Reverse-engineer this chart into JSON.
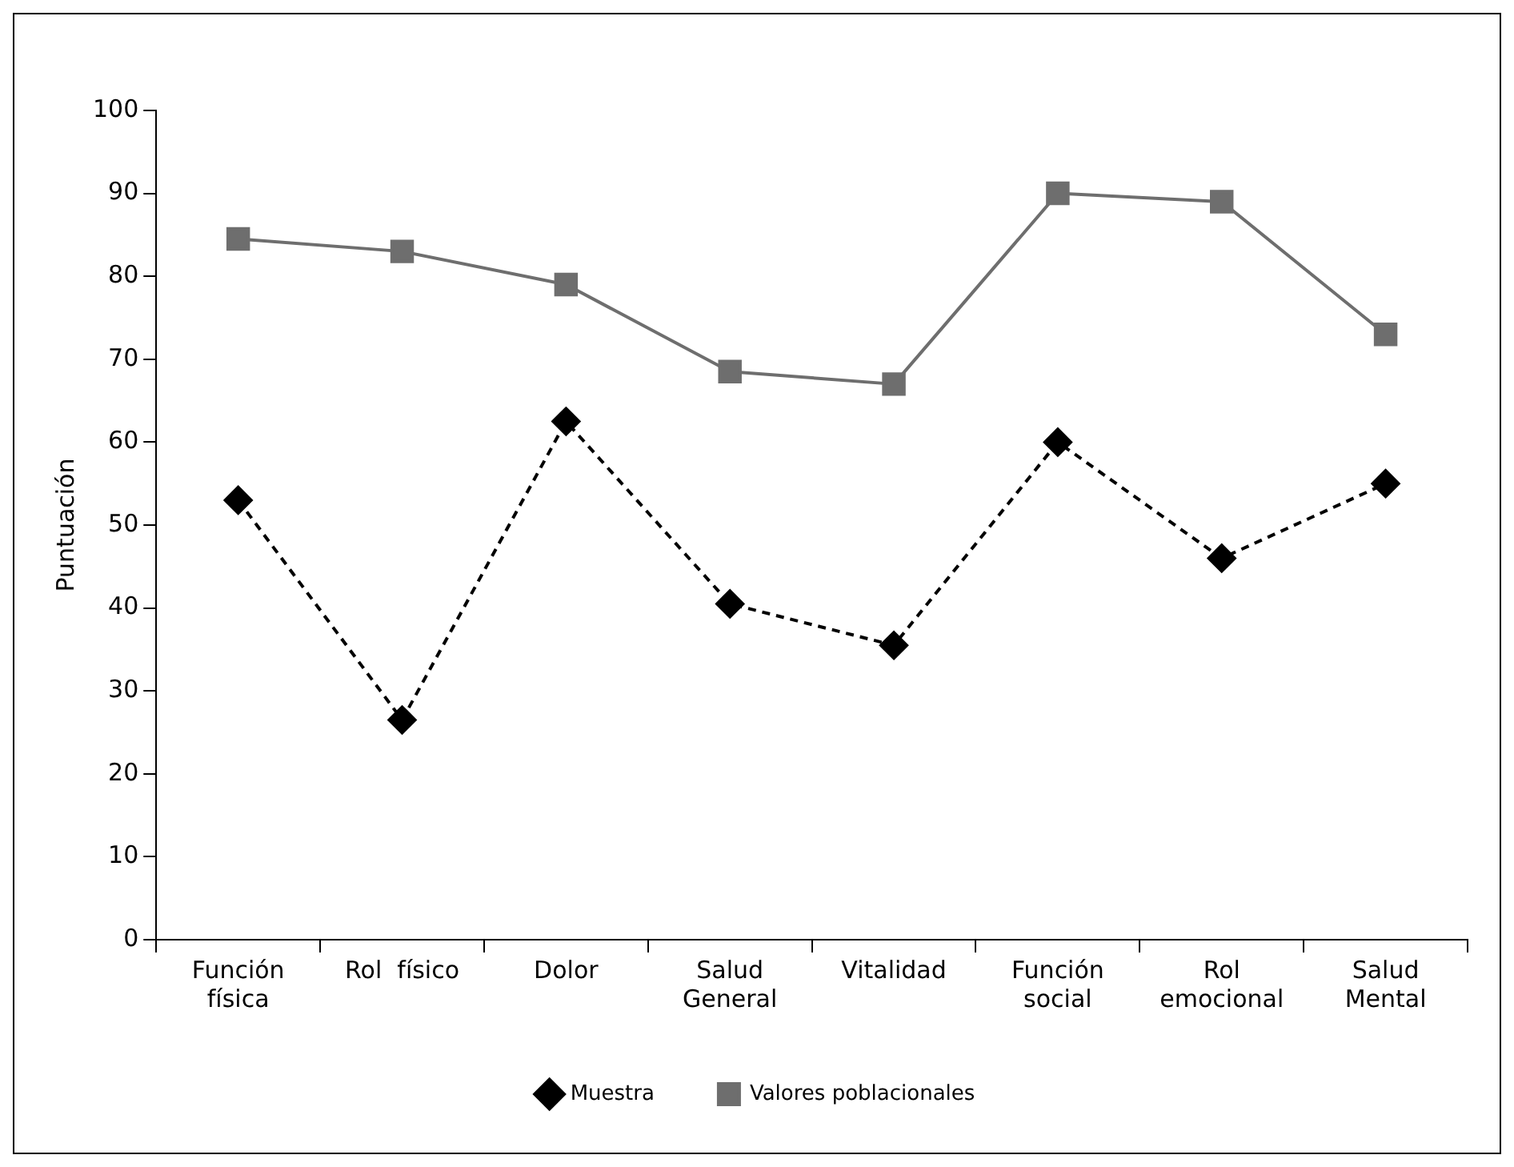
{
  "chart_data": {
    "type": "line",
    "ylabel": "Puntuación",
    "categories": [
      "Función\nfísica",
      "Rol  físico",
      "Dolor",
      "Salud\nGeneral",
      "Vitalidad",
      "Función\nsocial",
      "Rol\nemocional",
      "Salud\nMental"
    ],
    "series": [
      {
        "name": "Muestra",
        "color": "#000000",
        "marker": "diamond",
        "line_style": "dashed",
        "values": [
          53,
          26.5,
          62.5,
          40.5,
          35.5,
          60,
          46,
          55
        ]
      },
      {
        "name": "Valores poblacionales",
        "color": "#6e6e6e",
        "marker": "square",
        "line_style": "solid",
        "values": [
          84.5,
          83,
          79,
          68.5,
          67,
          90,
          89,
          73
        ]
      }
    ],
    "ylim": [
      0,
      100
    ],
    "yticks": [
      0,
      10,
      20,
      30,
      40,
      50,
      60,
      70,
      80,
      90,
      100
    ],
    "grid": false,
    "legend": "bottom"
  }
}
